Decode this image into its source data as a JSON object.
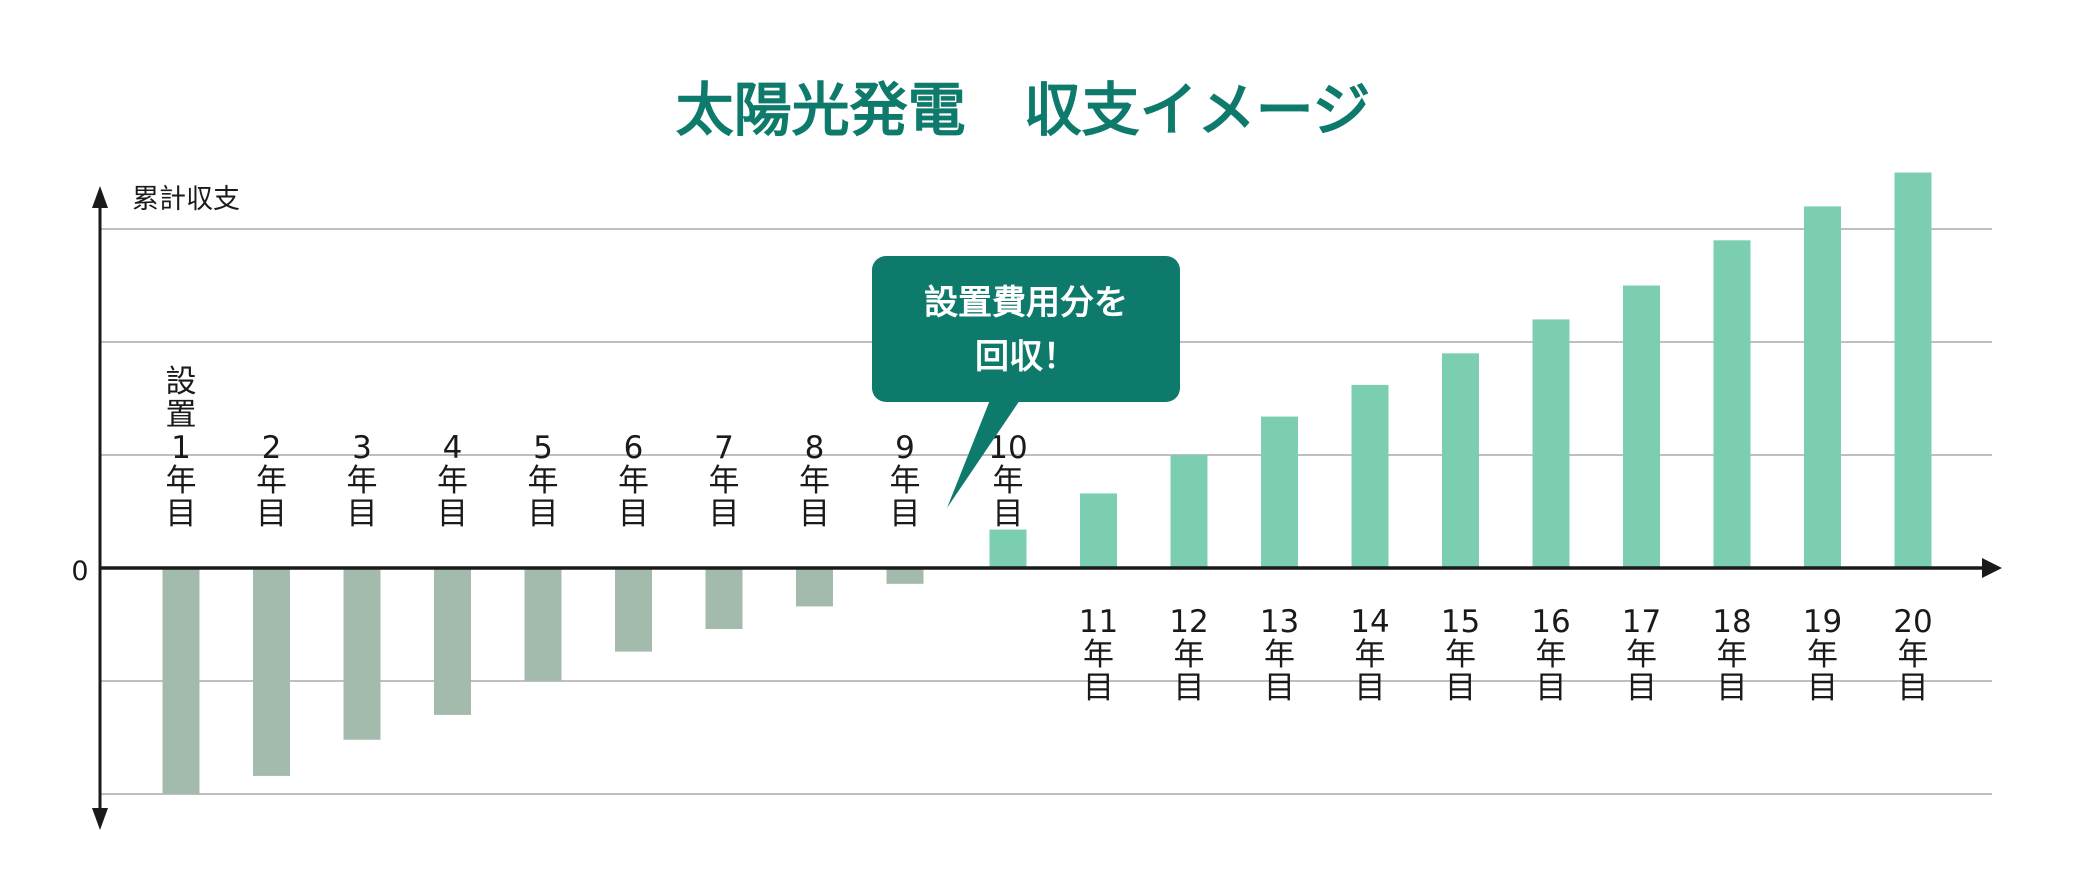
{
  "chart_data": {
    "type": "bar",
    "title": "太陽光発電　収支イメージ",
    "ylabel": "累計収支",
    "zero_label": "0",
    "ylim": [
      -10,
      17
    ],
    "grid": true,
    "categories": [
      {
        "num": "1",
        "prefix": "設置",
        "suffix1": "年",
        "suffix2": "目"
      },
      {
        "num": "2",
        "suffix1": "年",
        "suffix2": "目"
      },
      {
        "num": "3",
        "suffix1": "年",
        "suffix2": "目"
      },
      {
        "num": "4",
        "suffix1": "年",
        "suffix2": "目"
      },
      {
        "num": "5",
        "suffix1": "年",
        "suffix2": "目"
      },
      {
        "num": "6",
        "suffix1": "年",
        "suffix2": "目"
      },
      {
        "num": "7",
        "suffix1": "年",
        "suffix2": "目"
      },
      {
        "num": "8",
        "suffix1": "年",
        "suffix2": "目"
      },
      {
        "num": "9",
        "suffix1": "年",
        "suffix2": "目"
      },
      {
        "num": "10",
        "suffix1": "年",
        "suffix2": "目"
      },
      {
        "num": "11",
        "suffix1": "年",
        "suffix2": "目"
      },
      {
        "num": "12",
        "suffix1": "年",
        "suffix2": "目"
      },
      {
        "num": "13",
        "suffix1": "年",
        "suffix2": "目"
      },
      {
        "num": "14",
        "suffix1": "年",
        "suffix2": "目"
      },
      {
        "num": "15",
        "suffix1": "年",
        "suffix2": "目"
      },
      {
        "num": "16",
        "suffix1": "年",
        "suffix2": "目"
      },
      {
        "num": "17",
        "suffix1": "年",
        "suffix2": "目"
      },
      {
        "num": "18",
        "suffix1": "年",
        "suffix2": "目"
      },
      {
        "num": "19",
        "suffix1": "年",
        "suffix2": "目"
      },
      {
        "num": "20",
        "suffix1": "年",
        "suffix2": "目"
      }
    ],
    "values": [
      -10,
      -9.2,
      -7.6,
      -6.5,
      -5.0,
      -3.7,
      -2.7,
      -1.7,
      -0.7,
      1.7,
      3.3,
      5.0,
      6.7,
      8.1,
      9.5,
      11.0,
      12.5,
      14.5,
      16.0,
      17.5
    ],
    "annotation": {
      "line1": "設置費用分を",
      "line2": "回収！"
    },
    "colors": {
      "title": "#0e7a6c",
      "negative": "#a3bbad",
      "positive": "#7bcfb0",
      "callout": "#0e7a6c",
      "grid": "#999999",
      "axis": "#1a1a1a"
    }
  }
}
